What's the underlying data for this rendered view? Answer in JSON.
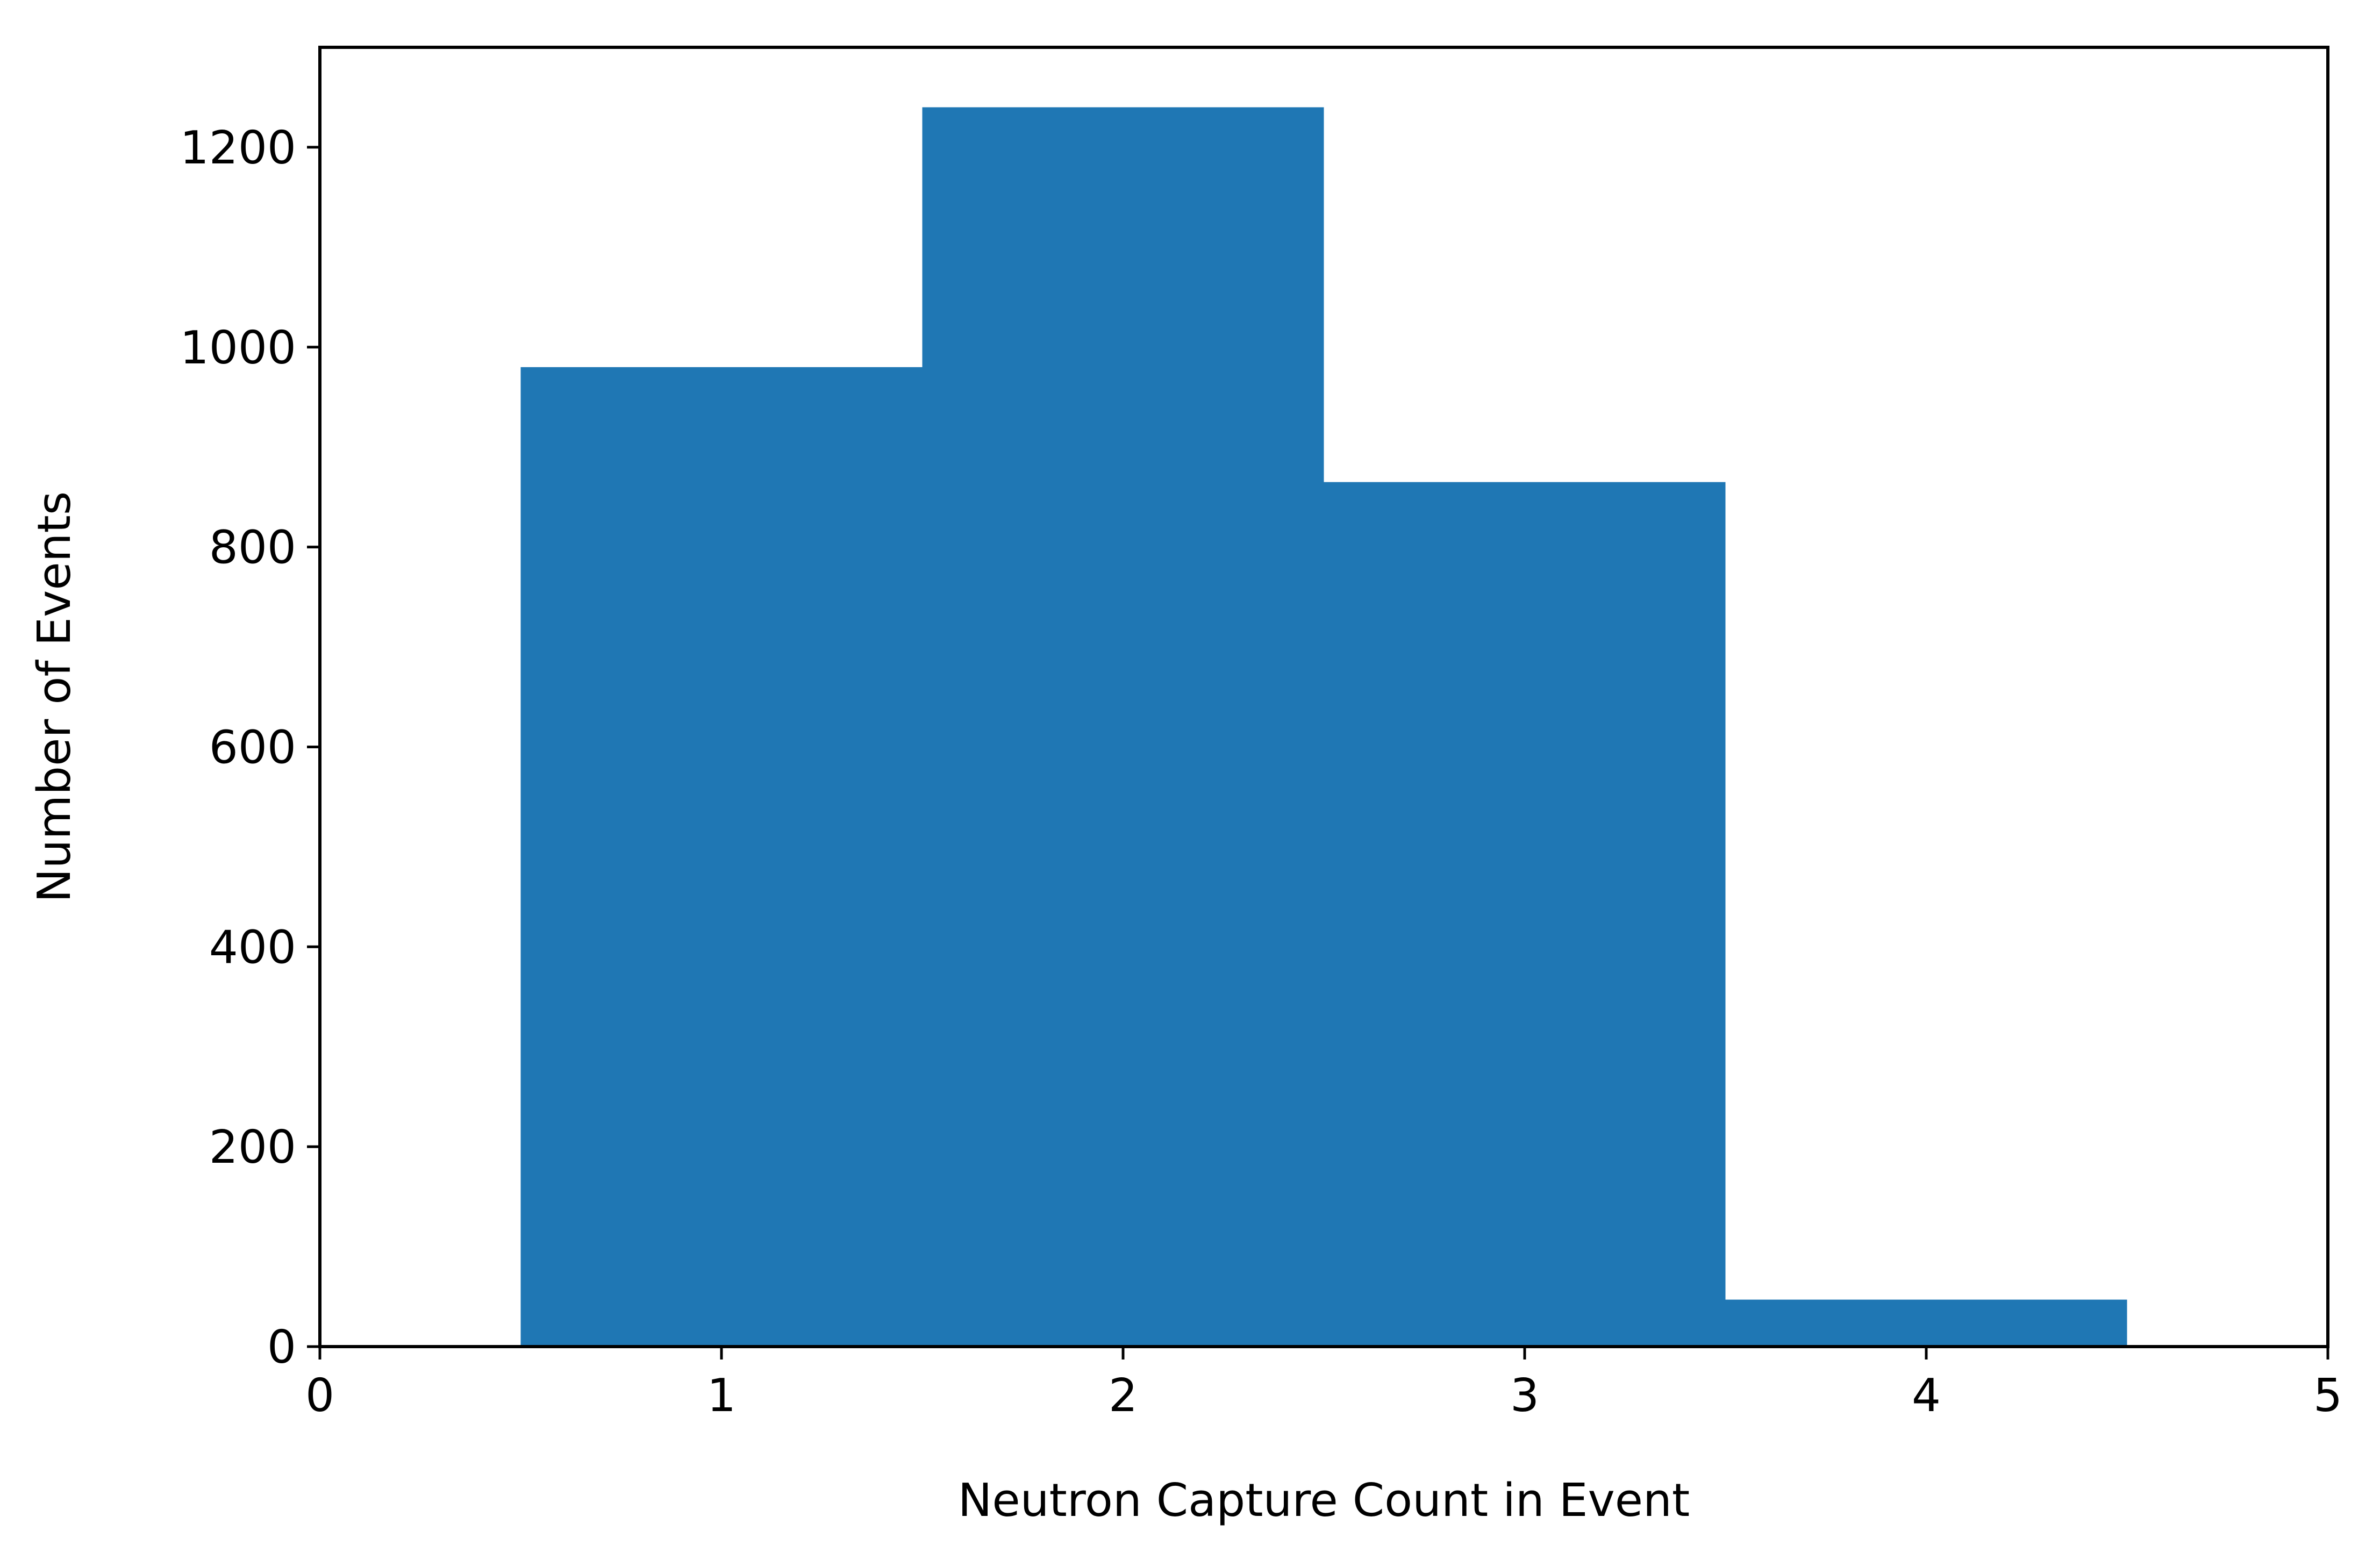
{
  "chart_data": {
    "type": "bar",
    "title": "",
    "xlabel": "Neutron Capture Count in Event",
    "ylabel": "Number of Events",
    "bins": [
      {
        "x0": 0.5,
        "x1": 1.5,
        "value": 980
      },
      {
        "x0": 1.5,
        "x1": 2.5,
        "value": 1240
      },
      {
        "x0": 2.5,
        "x1": 3.5,
        "value": 865
      },
      {
        "x0": 3.5,
        "x1": 4.5,
        "value": 47
      }
    ],
    "xlim": [
      0,
      5
    ],
    "ylim": [
      0,
      1300
    ],
    "x_ticks": [
      0,
      1,
      2,
      3,
      4,
      5
    ],
    "x_tick_labels": [
      "0",
      "1",
      "2",
      "3",
      "4",
      "5"
    ],
    "y_ticks": [
      0,
      200,
      400,
      600,
      800,
      1000,
      1200
    ],
    "y_tick_labels": [
      "0",
      "200",
      "400",
      "600",
      "800",
      "1000",
      "1200"
    ],
    "bar_color": "#1f77b4",
    "grid": false,
    "legend": "none"
  }
}
